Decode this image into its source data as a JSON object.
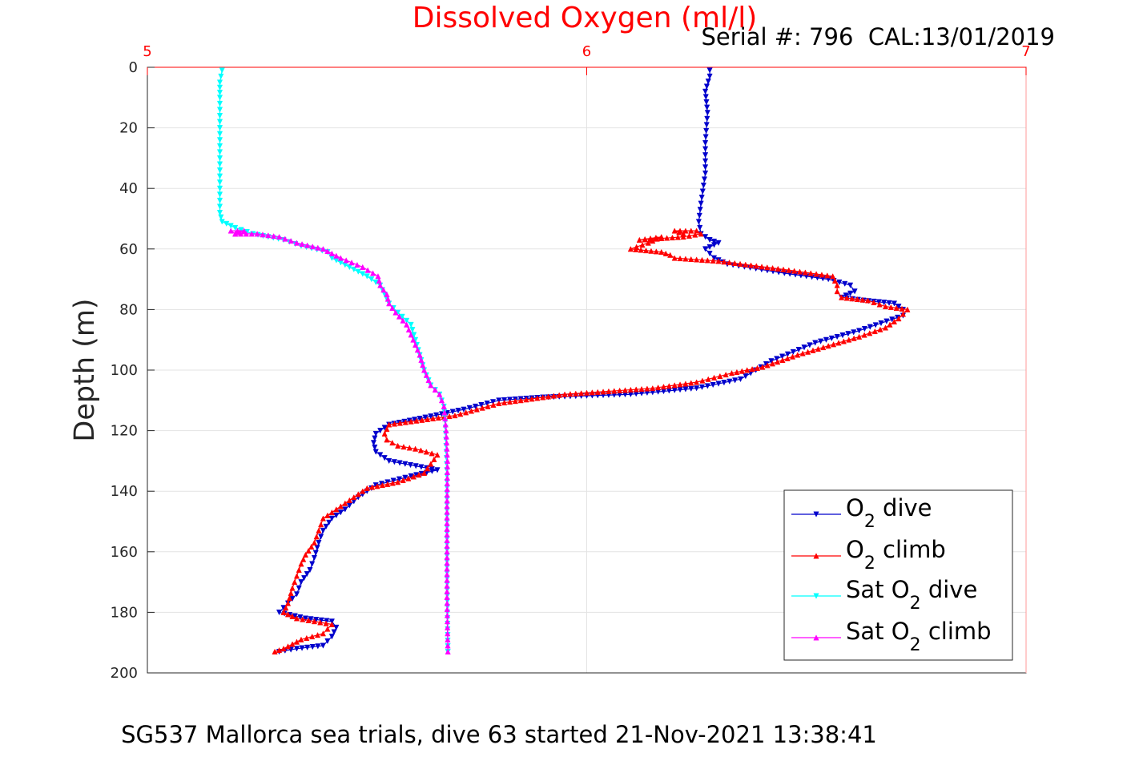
{
  "chart_data": {
    "type": "line",
    "title": "Dissolved Oxygen (ml/l)",
    "serial": "Serial #: 796  CAL:13/01/2019",
    "ylabel": "Depth (m)",
    "xlabel": "",
    "caption": "SG537 Mallorca sea trials, dive 63 started 21-Nov-2021 13:38:41",
    "xlim": [
      5,
      7
    ],
    "ylim": [
      0,
      200
    ],
    "y_reversed": true,
    "x_axis_position": "top",
    "grid": true,
    "x_ticks": [
      "5",
      "6",
      "7"
    ],
    "y_ticks": [
      "0",
      "20",
      "40",
      "60",
      "80",
      "100",
      "120",
      "140",
      "160",
      "180",
      "200"
    ],
    "legend_position": "bottom-right",
    "series": [
      {
        "name": "O2 dive",
        "label_main": "O",
        "label_sub": "2",
        "label_tail": " dive",
        "label_pre": "",
        "color": "#0000cc",
        "marker": "triangle-down",
        "points": [
          [
            6.28,
            1
          ],
          [
            6.28,
            3
          ],
          [
            6.27,
            8
          ],
          [
            6.275,
            15
          ],
          [
            6.27,
            25
          ],
          [
            6.27,
            35
          ],
          [
            6.26,
            45
          ],
          [
            6.255,
            51
          ],
          [
            6.26,
            55
          ],
          [
            6.28,
            57
          ],
          [
            6.3,
            58
          ],
          [
            6.27,
            60
          ],
          [
            6.29,
            63
          ],
          [
            6.32,
            65
          ],
          [
            6.45,
            68
          ],
          [
            6.55,
            70
          ],
          [
            6.6,
            72
          ],
          [
            6.61,
            74
          ],
          [
            6.58,
            76
          ],
          [
            6.63,
            77
          ],
          [
            6.7,
            78
          ],
          [
            6.72,
            80
          ],
          [
            6.72,
            82
          ],
          [
            6.62,
            87
          ],
          [
            6.52,
            91
          ],
          [
            6.42,
            97
          ],
          [
            6.35,
            103
          ],
          [
            6.25,
            106
          ],
          [
            6.1,
            108
          ],
          [
            5.9,
            109
          ],
          [
            5.8,
            110
          ],
          [
            5.72,
            113
          ],
          [
            5.62,
            116
          ],
          [
            5.55,
            118
          ],
          [
            5.52,
            121
          ],
          [
            5.515,
            124
          ],
          [
            5.52,
            127
          ],
          [
            5.55,
            130
          ],
          [
            5.66,
            133
          ],
          [
            5.6,
            135
          ],
          [
            5.52,
            138
          ],
          [
            5.48,
            142
          ],
          [
            5.45,
            146
          ],
          [
            5.42,
            149
          ],
          [
            5.4,
            153
          ],
          [
            5.39,
            157
          ],
          [
            5.38,
            162
          ],
          [
            5.37,
            166
          ],
          [
            5.35,
            170
          ],
          [
            5.34,
            174
          ],
          [
            5.32,
            177
          ],
          [
            5.3,
            180
          ],
          [
            5.36,
            182
          ],
          [
            5.42,
            183
          ],
          [
            5.43,
            185
          ],
          [
            5.42,
            188
          ],
          [
            5.4,
            191
          ],
          [
            5.34,
            192
          ],
          [
            5.3,
            193
          ]
        ]
      },
      {
        "name": "O2 climb",
        "label_main": "O",
        "label_sub": "2",
        "label_tail": " climb",
        "label_pre": "",
        "color": "#ff0000",
        "marker": "triangle-up",
        "points": [
          [
            5.29,
            193
          ],
          [
            5.31,
            192
          ],
          [
            5.35,
            189
          ],
          [
            5.4,
            187
          ],
          [
            5.42,
            184
          ],
          [
            5.38,
            183
          ],
          [
            5.34,
            182
          ],
          [
            5.31,
            180
          ],
          [
            5.32,
            177
          ],
          [
            5.33,
            172
          ],
          [
            5.34,
            168
          ],
          [
            5.35,
            164
          ],
          [
            5.36,
            161
          ],
          [
            5.38,
            157
          ],
          [
            5.39,
            153
          ],
          [
            5.4,
            149
          ],
          [
            5.43,
            146
          ],
          [
            5.46,
            143
          ],
          [
            5.5,
            139
          ],
          [
            5.57,
            137
          ],
          [
            5.63,
            134
          ],
          [
            5.66,
            128
          ],
          [
            5.61,
            126
          ],
          [
            5.57,
            125
          ],
          [
            5.545,
            123
          ],
          [
            5.54,
            121
          ],
          [
            5.55,
            118
          ],
          [
            5.6,
            117
          ],
          [
            5.7,
            115
          ],
          [
            5.8,
            111
          ],
          [
            5.95,
            108
          ],
          [
            6.15,
            106
          ],
          [
            6.25,
            104
          ],
          [
            6.33,
            101
          ],
          [
            6.4,
            99
          ],
          [
            6.48,
            95
          ],
          [
            6.55,
            92
          ],
          [
            6.62,
            89
          ],
          [
            6.68,
            86
          ],
          [
            6.71,
            83
          ],
          [
            6.73,
            80
          ],
          [
            6.68,
            79
          ],
          [
            6.64,
            77
          ],
          [
            6.58,
            76
          ],
          [
            6.57,
            74
          ],
          [
            6.57,
            72
          ],
          [
            6.56,
            69
          ],
          [
            6.46,
            67
          ],
          [
            6.3,
            64
          ],
          [
            6.2,
            63
          ],
          [
            6.19,
            62
          ],
          [
            6.17,
            61
          ],
          [
            6.1,
            60
          ],
          [
            6.14,
            58
          ],
          [
            6.17,
            56
          ],
          [
            6.12,
            57
          ],
          [
            6.22,
            56
          ],
          [
            6.26,
            55
          ],
          [
            6.25,
            54
          ],
          [
            6.2,
            54
          ],
          [
            6.22,
            55
          ]
        ]
      },
      {
        "name": "Sat O2 dive",
        "label_main": "O",
        "label_sub": "2",
        "label_tail": " dive",
        "label_pre": "Sat ",
        "color": "#00ffff",
        "marker": "triangle-down",
        "points": [
          [
            5.17,
            1
          ],
          [
            5.165,
            5
          ],
          [
            5.165,
            10
          ],
          [
            5.165,
            20
          ],
          [
            5.165,
            30
          ],
          [
            5.165,
            40
          ],
          [
            5.165,
            48
          ],
          [
            5.17,
            51
          ],
          [
            5.2,
            53
          ],
          [
            5.24,
            55
          ],
          [
            5.31,
            57
          ],
          [
            5.35,
            59
          ],
          [
            5.41,
            61
          ],
          [
            5.42,
            63
          ],
          [
            5.46,
            66
          ],
          [
            5.5,
            69
          ],
          [
            5.53,
            72
          ],
          [
            5.54,
            75
          ],
          [
            5.55,
            78
          ],
          [
            5.57,
            81
          ],
          [
            5.6,
            85
          ],
          [
            5.61,
            90
          ],
          [
            5.62,
            95
          ],
          [
            5.63,
            100
          ],
          [
            5.645,
            105
          ],
          [
            5.665,
            108
          ],
          [
            5.675,
            112
          ],
          [
            5.678,
            117
          ],
          [
            5.68,
            125
          ],
          [
            5.682,
            135
          ],
          [
            5.682,
            150
          ],
          [
            5.682,
            165
          ],
          [
            5.683,
            180
          ],
          [
            5.684,
            193
          ]
        ]
      },
      {
        "name": "Sat O2 climb",
        "label_main": "O",
        "label_sub": "2",
        "label_tail": " climb",
        "label_pre": "Sat ",
        "color": "#ff00ff",
        "marker": "triangle-up",
        "points": [
          [
            5.684,
            193
          ],
          [
            5.683,
            185
          ],
          [
            5.682,
            175
          ],
          [
            5.682,
            160
          ],
          [
            5.682,
            145
          ],
          [
            5.683,
            130
          ],
          [
            5.68,
            120
          ],
          [
            5.675,
            112
          ],
          [
            5.665,
            108
          ],
          [
            5.645,
            105
          ],
          [
            5.63,
            100
          ],
          [
            5.62,
            95
          ],
          [
            5.605,
            90
          ],
          [
            5.59,
            85
          ],
          [
            5.565,
            81
          ],
          [
            5.55,
            78
          ],
          [
            5.545,
            75
          ],
          [
            5.53,
            72
          ],
          [
            5.525,
            69
          ],
          [
            5.49,
            66
          ],
          [
            5.44,
            63
          ],
          [
            5.4,
            60
          ],
          [
            5.34,
            58
          ],
          [
            5.3,
            56
          ],
          [
            5.25,
            55
          ],
          [
            5.2,
            55
          ],
          [
            5.19,
            54
          ],
          [
            5.22,
            54
          ],
          [
            5.2,
            55
          ]
        ]
      }
    ]
  }
}
